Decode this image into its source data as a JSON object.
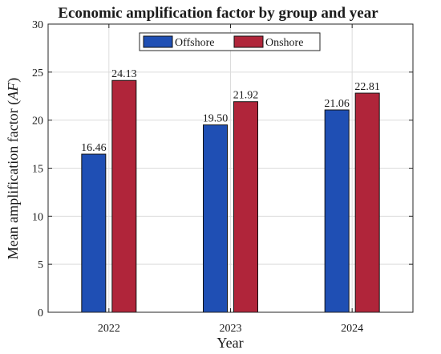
{
  "chart_data": {
    "type": "bar",
    "title": "Economic amplification factor by group and year",
    "xlabel": "Year",
    "ylabel_main": "Mean amplification factor (",
    "ylabel_symbol": "AF",
    "ylabel_close": ")",
    "categories": [
      "2022",
      "2023",
      "2024"
    ],
    "series": [
      {
        "name": "Offshore",
        "values": [
          16.46,
          19.5,
          21.06
        ],
        "value_labels": [
          "16.46",
          "19.50",
          "21.06"
        ],
        "color": "#1f4fb4"
      },
      {
        "name": "Onshore",
        "values": [
          24.13,
          21.92,
          22.81
        ],
        "value_labels": [
          "24.13",
          "21.92",
          "22.81"
        ],
        "color": "#b0253a"
      }
    ],
    "ylim": [
      0,
      30
    ],
    "yticks": [
      0,
      5,
      10,
      15,
      20,
      25,
      30
    ],
    "grid": true,
    "legend": "top-center"
  }
}
